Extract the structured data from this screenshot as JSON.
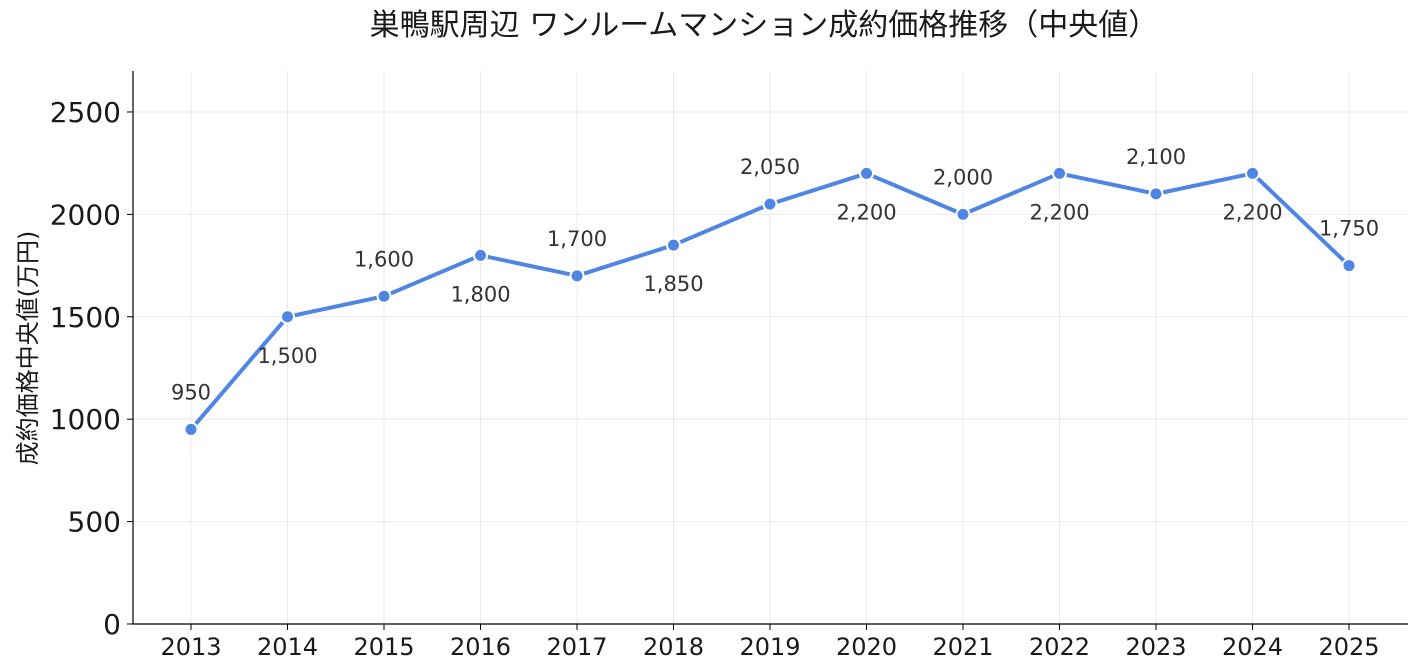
{
  "chart_data": {
    "type": "line",
    "title": "巣鴨駅周辺 ワンルームマンション成約価格推移（中央値）",
    "xlabel": "",
    "ylabel": "成約価格中央値(万円)",
    "x": [
      "2013",
      "2014",
      "2015",
      "2016",
      "2017",
      "2018",
      "2019",
      "2020",
      "2021",
      "2022",
      "2023",
      "2024",
      "2025"
    ],
    "values": [
      950,
      1500,
      1600,
      1800,
      1700,
      1850,
      2050,
      2200,
      2000,
      2200,
      2100,
      2200,
      1750
    ],
    "data_labels": [
      "950",
      "1,500",
      "1,600",
      "1,800",
      "1,700",
      "1,850",
      "2,050",
      "2,200",
      "2,000",
      "2,200",
      "2,100",
      "2,200",
      "1,750"
    ],
    "label_positions": [
      "above",
      "below",
      "above",
      "below",
      "above",
      "below",
      "above",
      "below",
      "above",
      "below",
      "above",
      "below",
      "above"
    ],
    "ylim": [
      0,
      2700
    ],
    "yticks": [
      0,
      500,
      1000,
      1500,
      2000,
      2500
    ],
    "grid": true,
    "legend": "none",
    "colors": {
      "line": "#4f86e3",
      "marker_edge": "#ffffff"
    }
  }
}
